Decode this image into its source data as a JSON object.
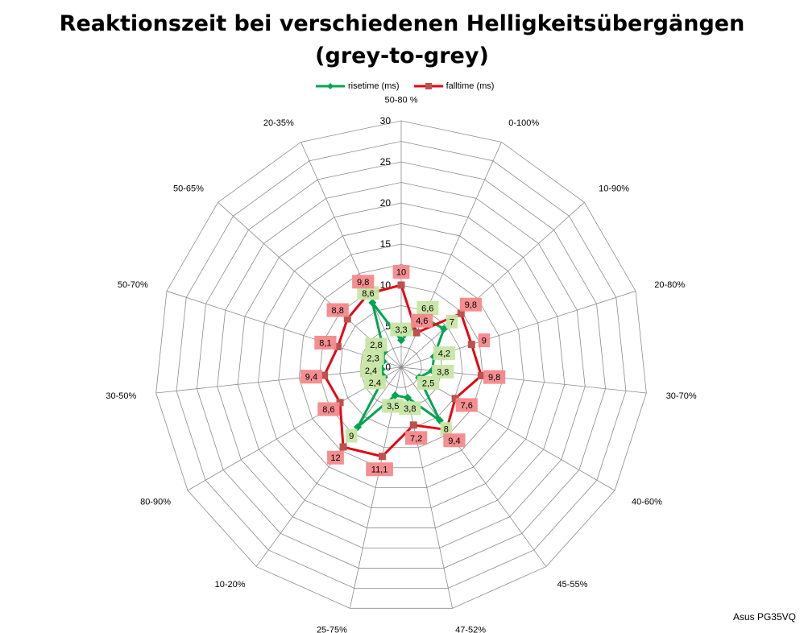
{
  "chart_data": {
    "type": "radar",
    "title_line1": "Reaktionszeit bei verschiedenen Helligkeitsübergängen",
    "title_line2": "(grey-to-grey)",
    "categories": [
      "50-80 %",
      "0-100%",
      "10-90%",
      "20-80%",
      "30-70%",
      "40-60%",
      "45-55%",
      "47-52%",
      "25-75%",
      "10-20%",
      "80-90%",
      "30-50%",
      "50-70%",
      "50-65%",
      "20-35%"
    ],
    "rlim": [
      0,
      30
    ],
    "rticks": [
      "0",
      "5",
      "10",
      "15",
      "20",
      "25",
      "30"
    ],
    "grid": true,
    "legend_position": "top",
    "series": [
      {
        "name": "risetime (ms)",
        "color": "#00A550",
        "label_color": "#C7E6A4",
        "marker": "diamond",
        "values": [
          3.3,
          6.6,
          7,
          4.2,
          3.8,
          2.5,
          8,
          3.8,
          3.5,
          9,
          2.4,
          2.4,
          2.3,
          2.8,
          8.6
        ],
        "labels": [
          "3,3",
          "6,6",
          "7",
          "4,2",
          "3,8",
          "2,5",
          "8",
          "3,8",
          "3,5",
          "9",
          "2,4",
          "2,4",
          "2,3",
          "2,8",
          "8,6"
        ]
      },
      {
        "name": "falltime (ms)",
        "color": "#E30613",
        "label_color": "#F4888A",
        "marker": "square",
        "values": [
          10,
          4.6,
          9.8,
          9,
          9.8,
          7.6,
          9.4,
          7.2,
          11.1,
          12,
          8.6,
          9.4,
          8.1,
          8.8,
          9.8
        ],
        "labels": [
          "10",
          "4,6",
          "9,8",
          "9",
          "9,8",
          "7,6",
          "9,4",
          "7,2",
          "11,1",
          "12",
          "8,6",
          "9,4",
          "8,1",
          "8,8",
          "9,8"
        ]
      }
    ]
  },
  "footer_label": "Asus PG35VQ"
}
